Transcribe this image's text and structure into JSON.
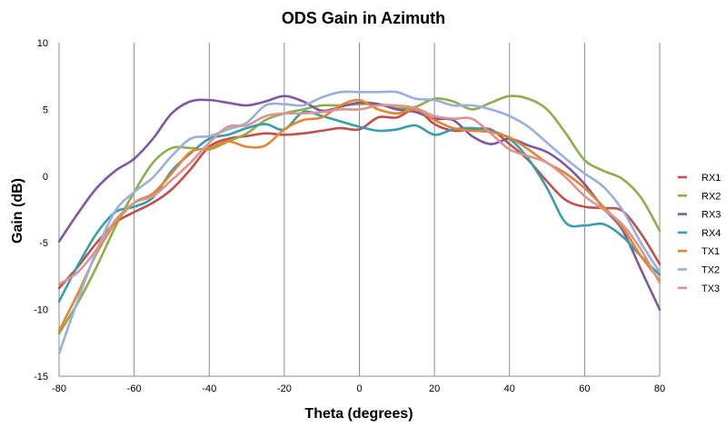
{
  "chart_data": {
    "type": "line",
    "title": "ODS Gain in Azimuth",
    "xlabel": "Theta (degrees)",
    "ylabel": "Gain (dB)",
    "xlim": [
      -80,
      80
    ],
    "ylim": [
      -15,
      10
    ],
    "xticks": [
      -80,
      -60,
      -40,
      -20,
      0,
      20,
      40,
      60,
      80
    ],
    "yticks": [
      -15,
      -10,
      -5,
      0,
      5,
      10
    ],
    "grid": "vertical",
    "legend": "right",
    "series": [
      {
        "name": "RX1",
        "color": "#c0504d",
        "points": [
          [
            -80,
            -8.4
          ],
          [
            -75,
            -6.8
          ],
          [
            -70,
            -5.0
          ],
          [
            -65,
            -3.5
          ],
          [
            -60,
            -2.7
          ],
          [
            -55,
            -2.0
          ],
          [
            -50,
            -1.0
          ],
          [
            -45,
            0.5
          ],
          [
            -40,
            2.2
          ],
          [
            -35,
            2.8
          ],
          [
            -30,
            3.0
          ],
          [
            -25,
            3.2
          ],
          [
            -20,
            3.1
          ],
          [
            -15,
            3.2
          ],
          [
            -10,
            3.4
          ],
          [
            -5,
            3.6
          ],
          [
            0,
            3.5
          ],
          [
            5,
            4.4
          ],
          [
            10,
            4.4
          ],
          [
            15,
            5.0
          ],
          [
            20,
            3.9
          ],
          [
            25,
            3.4
          ],
          [
            30,
            3.5
          ],
          [
            35,
            3.5
          ],
          [
            40,
            2.4
          ],
          [
            45,
            1.2
          ],
          [
            50,
            -0.4
          ],
          [
            55,
            -1.8
          ],
          [
            60,
            -2.3
          ],
          [
            65,
            -2.4
          ],
          [
            70,
            -2.6
          ],
          [
            75,
            -4.3
          ],
          [
            80,
            -6.6
          ]
        ]
      },
      {
        "name": "RX2",
        "color": "#8fad4a",
        "points": [
          [
            -80,
            -11.8
          ],
          [
            -75,
            -9.5
          ],
          [
            -70,
            -6.8
          ],
          [
            -65,
            -3.8
          ],
          [
            -60,
            -1.2
          ],
          [
            -55,
            1.0
          ],
          [
            -50,
            2.1
          ],
          [
            -45,
            2.1
          ],
          [
            -40,
            2.0
          ],
          [
            -35,
            2.6
          ],
          [
            -30,
            3.2
          ],
          [
            -25,
            4.2
          ],
          [
            -20,
            4.7
          ],
          [
            -15,
            5.0
          ],
          [
            -10,
            5.3
          ],
          [
            -5,
            5.3
          ],
          [
            0,
            5.4
          ],
          [
            5,
            5.4
          ],
          [
            10,
            5.1
          ],
          [
            15,
            5.2
          ],
          [
            20,
            5.8
          ],
          [
            25,
            5.6
          ],
          [
            30,
            5.0
          ],
          [
            35,
            5.5
          ],
          [
            40,
            6.0
          ],
          [
            45,
            5.8
          ],
          [
            50,
            5.0
          ],
          [
            55,
            3.2
          ],
          [
            60,
            1.2
          ],
          [
            65,
            0.4
          ],
          [
            70,
            -0.2
          ],
          [
            75,
            -1.6
          ],
          [
            80,
            -4.1
          ]
        ]
      },
      {
        "name": "RX3",
        "color": "#7e58a3",
        "points": [
          [
            -80,
            -4.9
          ],
          [
            -75,
            -2.8
          ],
          [
            -70,
            -0.9
          ],
          [
            -65,
            0.4
          ],
          [
            -60,
            1.3
          ],
          [
            -55,
            2.8
          ],
          [
            -50,
            4.7
          ],
          [
            -45,
            5.6
          ],
          [
            -40,
            5.7
          ],
          [
            -35,
            5.5
          ],
          [
            -30,
            5.3
          ],
          [
            -25,
            5.6
          ],
          [
            -20,
            6.0
          ],
          [
            -15,
            5.6
          ],
          [
            -10,
            4.9
          ],
          [
            -5,
            5.2
          ],
          [
            0,
            5.5
          ],
          [
            5,
            5.4
          ],
          [
            10,
            5.0
          ],
          [
            15,
            4.8
          ],
          [
            20,
            4.3
          ],
          [
            25,
            4.2
          ],
          [
            30,
            3.0
          ],
          [
            35,
            2.4
          ],
          [
            40,
            2.8
          ],
          [
            45,
            2.3
          ],
          [
            50,
            1.8
          ],
          [
            55,
            0.8
          ],
          [
            60,
            -0.6
          ],
          [
            65,
            -2.4
          ],
          [
            70,
            -4.0
          ],
          [
            75,
            -7.0
          ],
          [
            80,
            -10.0
          ]
        ]
      },
      {
        "name": "RX4",
        "color": "#3a9dac",
        "points": [
          [
            -80,
            -9.4
          ],
          [
            -75,
            -6.7
          ],
          [
            -70,
            -4.3
          ],
          [
            -65,
            -2.7
          ],
          [
            -60,
            -2.3
          ],
          [
            -55,
            -1.6
          ],
          [
            -50,
            0.4
          ],
          [
            -45,
            1.7
          ],
          [
            -40,
            2.8
          ],
          [
            -35,
            3.1
          ],
          [
            -30,
            3.6
          ],
          [
            -25,
            3.9
          ],
          [
            -20,
            3.5
          ],
          [
            -15,
            4.8
          ],
          [
            -10,
            4.5
          ],
          [
            -5,
            4.1
          ],
          [
            0,
            3.7
          ],
          [
            5,
            3.4
          ],
          [
            10,
            3.5
          ],
          [
            15,
            3.8
          ],
          [
            20,
            3.1
          ],
          [
            25,
            3.5
          ],
          [
            30,
            3.6
          ],
          [
            35,
            3.4
          ],
          [
            40,
            2.8
          ],
          [
            45,
            1.3
          ],
          [
            50,
            -0.9
          ],
          [
            55,
            -3.5
          ],
          [
            60,
            -3.7
          ],
          [
            65,
            -3.6
          ],
          [
            70,
            -4.5
          ],
          [
            75,
            -6.0
          ],
          [
            80,
            -7.4
          ]
        ]
      },
      {
        "name": "TX1",
        "color": "#e4862f",
        "points": [
          [
            -80,
            -11.6
          ],
          [
            -75,
            -8.8
          ],
          [
            -70,
            -5.8
          ],
          [
            -65,
            -3.5
          ],
          [
            -60,
            -2.0
          ],
          [
            -55,
            -1.3
          ],
          [
            -50,
            0.2
          ],
          [
            -45,
            1.8
          ],
          [
            -40,
            2.1
          ],
          [
            -35,
            2.6
          ],
          [
            -30,
            2.2
          ],
          [
            -25,
            2.3
          ],
          [
            -20,
            3.5
          ],
          [
            -15,
            4.2
          ],
          [
            -10,
            4.4
          ],
          [
            -5,
            5.3
          ],
          [
            0,
            5.7
          ],
          [
            5,
            5.0
          ],
          [
            10,
            4.7
          ],
          [
            15,
            5.0
          ],
          [
            20,
            4.2
          ],
          [
            25,
            3.6
          ],
          [
            30,
            3.4
          ],
          [
            35,
            3.3
          ],
          [
            40,
            2.9
          ],
          [
            45,
            2.0
          ],
          [
            50,
            1.0
          ],
          [
            55,
            0.2
          ],
          [
            60,
            -0.9
          ],
          [
            65,
            -2.3
          ],
          [
            70,
            -3.8
          ],
          [
            75,
            -6.0
          ],
          [
            80,
            -7.8
          ]
        ]
      },
      {
        "name": "TX2",
        "color": "#98b0da",
        "points": [
          [
            -80,
            -13.3
          ],
          [
            -75,
            -9.3
          ],
          [
            -70,
            -5.6
          ],
          [
            -65,
            -2.6
          ],
          [
            -60,
            -1.2
          ],
          [
            -55,
            -0.1
          ],
          [
            -50,
            1.5
          ],
          [
            -45,
            2.8
          ],
          [
            -40,
            3.0
          ],
          [
            -35,
            3.5
          ],
          [
            -30,
            4.0
          ],
          [
            -25,
            5.3
          ],
          [
            -20,
            5.4
          ],
          [
            -15,
            5.3
          ],
          [
            -10,
            5.9
          ],
          [
            -5,
            6.3
          ],
          [
            0,
            6.3
          ],
          [
            5,
            6.3
          ],
          [
            10,
            6.3
          ],
          [
            15,
            5.8
          ],
          [
            20,
            5.7
          ],
          [
            25,
            5.3
          ],
          [
            30,
            5.3
          ],
          [
            35,
            5.0
          ],
          [
            40,
            4.5
          ],
          [
            45,
            3.7
          ],
          [
            50,
            2.5
          ],
          [
            55,
            1.3
          ],
          [
            60,
            0.2
          ],
          [
            65,
            -0.8
          ],
          [
            70,
            -2.5
          ],
          [
            75,
            -5.0
          ],
          [
            80,
            -7.2
          ]
        ]
      },
      {
        "name": "TX3",
        "color": "#d99594",
        "points": [
          [
            -80,
            -8.1
          ],
          [
            -75,
            -7.2
          ],
          [
            -70,
            -5.5
          ],
          [
            -65,
            -3.3
          ],
          [
            -60,
            -2.0
          ],
          [
            -55,
            -1.5
          ],
          [
            -50,
            -0.3
          ],
          [
            -45,
            1.0
          ],
          [
            -40,
            2.5
          ],
          [
            -35,
            3.7
          ],
          [
            -30,
            3.8
          ],
          [
            -25,
            4.5
          ],
          [
            -20,
            4.7
          ],
          [
            -15,
            4.7
          ],
          [
            -10,
            4.8
          ],
          [
            -5,
            5.0
          ],
          [
            0,
            5.0
          ],
          [
            5,
            5.3
          ],
          [
            10,
            5.3
          ],
          [
            15,
            5.1
          ],
          [
            20,
            4.5
          ],
          [
            25,
            4.3
          ],
          [
            30,
            4.3
          ],
          [
            35,
            3.2
          ],
          [
            40,
            2.0
          ],
          [
            45,
            1.5
          ],
          [
            50,
            1.0
          ],
          [
            55,
            -0.1
          ],
          [
            60,
            -1.5
          ],
          [
            65,
            -2.5
          ],
          [
            70,
            -3.6
          ],
          [
            75,
            -5.5
          ],
          [
            80,
            -8.0
          ]
        ]
      }
    ]
  }
}
